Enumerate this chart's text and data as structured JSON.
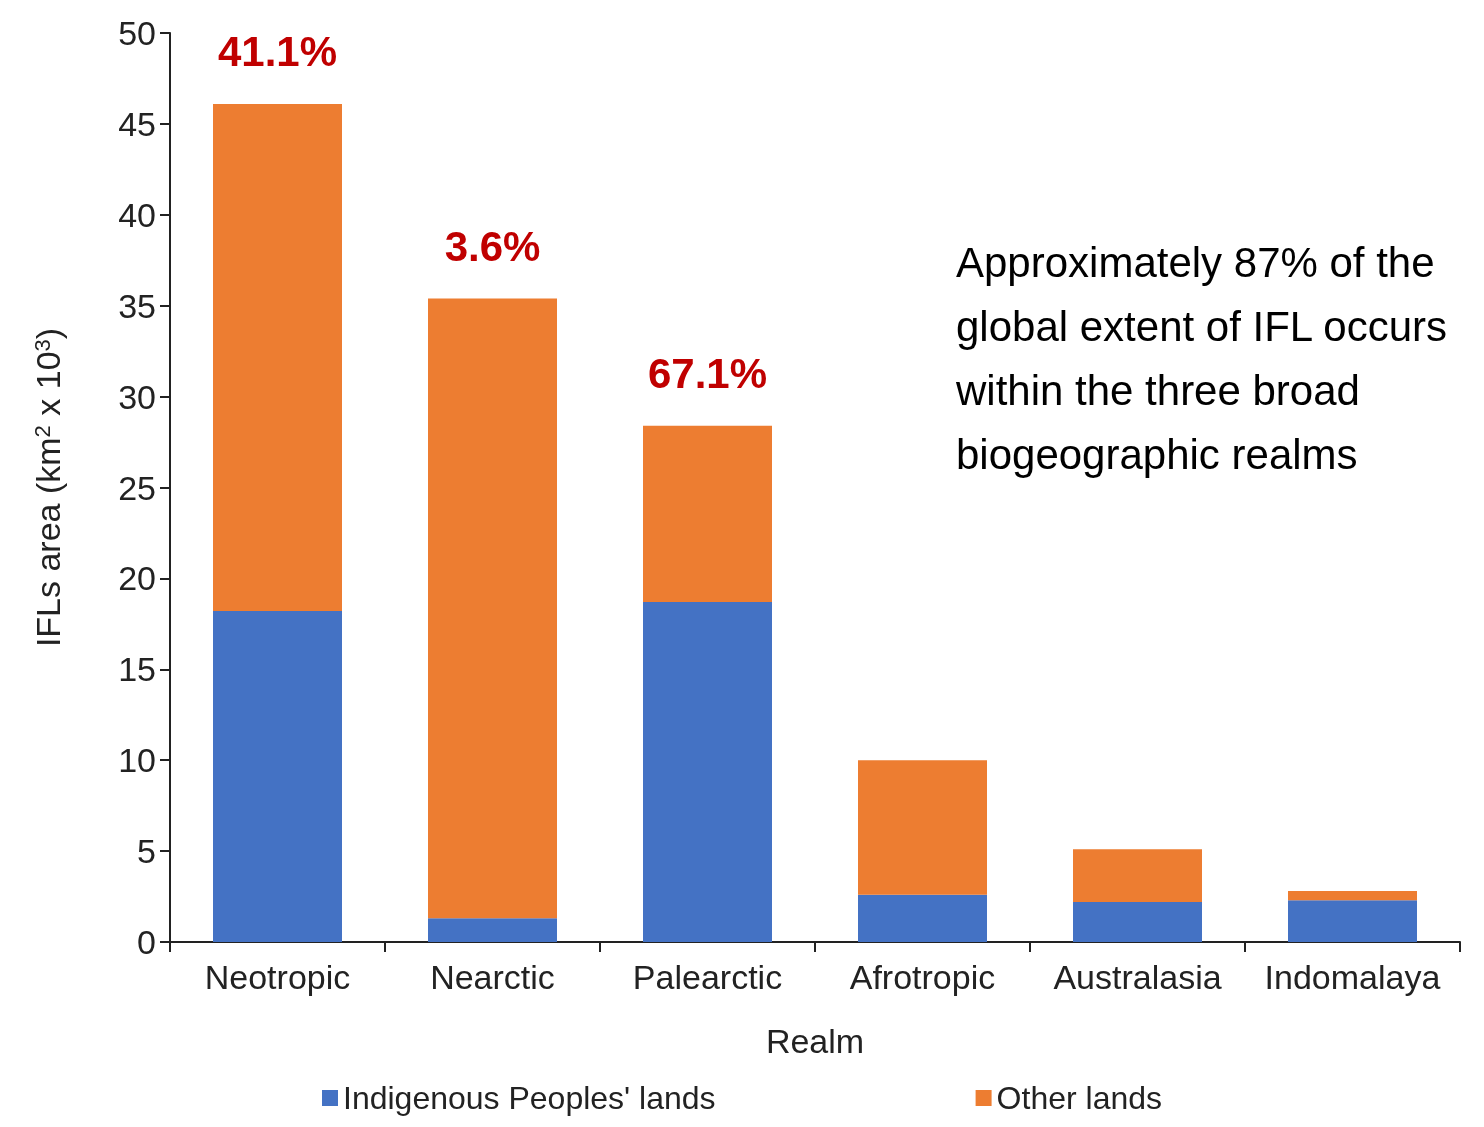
{
  "chart_data": {
    "type": "bar",
    "stacked": true,
    "categories": [
      "Neotropic",
      "Nearctic",
      "Palearctic",
      "Afrotropic",
      "Australasia",
      "Indomalaya"
    ],
    "series": [
      {
        "name": "Indigenous Peoples' lands",
        "color": "#4472c4",
        "values": [
          18.2,
          1.3,
          18.7,
          2.6,
          2.2,
          2.3
        ]
      },
      {
        "name": "Other lands",
        "color": "#ed7d31",
        "values": [
          27.9,
          34.1,
          9.7,
          7.4,
          2.9,
          0.5
        ]
      }
    ],
    "xlabel": "Realm",
    "ylabel": "IFLs area (km$^{2}$ x 10$^{3}$)",
    "ylim": [
      0,
      50
    ],
    "yticks": [
      0,
      5,
      10,
      15,
      20,
      25,
      30,
      35,
      40,
      45,
      50
    ],
    "grid": false,
    "legend": "bottom",
    "annotations": [
      {
        "text": "41.1%",
        "x": "Neotropic",
        "y": 46.1
      },
      {
        "text": "3.6%",
        "x": "Nearctic",
        "y": 35.4
      },
      {
        "text": "67.1%",
        "x": "Palearctic",
        "y": 28.4
      },
      "Approximately 87% of the global extent of IFL occurs within the three broad biogeographic realms"
    ]
  }
}
